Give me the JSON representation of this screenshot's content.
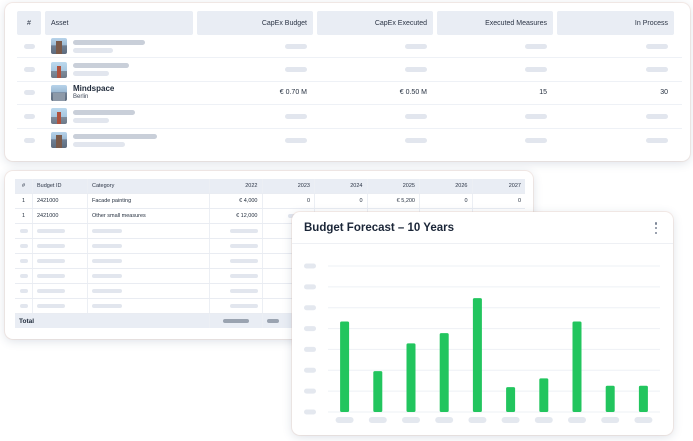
{
  "assets_table": {
    "headers": [
      "#",
      "Asset",
      "CapEx Budget",
      "CapEx Executed",
      "Executed Measures",
      "In Process"
    ],
    "highlight_row": {
      "name": "Mindspace",
      "city": "Berlin",
      "capex_budget": "€ 0.70 M",
      "capex_executed": "€ 0.50 M",
      "executed_measures": "15",
      "in_process": "30"
    }
  },
  "budget_table": {
    "headers": [
      "#",
      "Budget ID",
      "Category",
      "2022",
      "2023",
      "2024",
      "2025",
      "2026",
      "2027"
    ],
    "rows": [
      {
        "idx": "1",
        "budget_id": "2421000",
        "category": "Facade painting",
        "y2022": "€ 4,000",
        "y2023": "0",
        "y2024": "0",
        "y2025": "€ 5,200",
        "y2026": "0",
        "y2027": "0"
      },
      {
        "idx": "1",
        "budget_id": "2421000",
        "category": "Other small measures",
        "y2022": "€ 12,000",
        "y2023": "",
        "y2024": "",
        "y2025": "",
        "y2026": "",
        "y2027": ""
      }
    ],
    "total_label": "Total"
  },
  "chart_card": {
    "title": "Budget Forecast – 10 Years"
  },
  "chart_data": {
    "type": "bar",
    "title": "Budget Forecast – 10 Years",
    "categories": [
      "",
      "",
      "",
      "",
      "",
      "",
      "",
      "",
      "",
      ""
    ],
    "values": [
      62,
      28,
      47,
      54,
      78,
      17,
      23,
      62,
      18,
      18
    ],
    "ylim": [
      0,
      100
    ],
    "grid": true,
    "bar_color": "#22c55e"
  },
  "colors": {
    "header_bg": "#e9edf4",
    "placeholder": "#e2e6ee",
    "bar": "#22c55e"
  }
}
